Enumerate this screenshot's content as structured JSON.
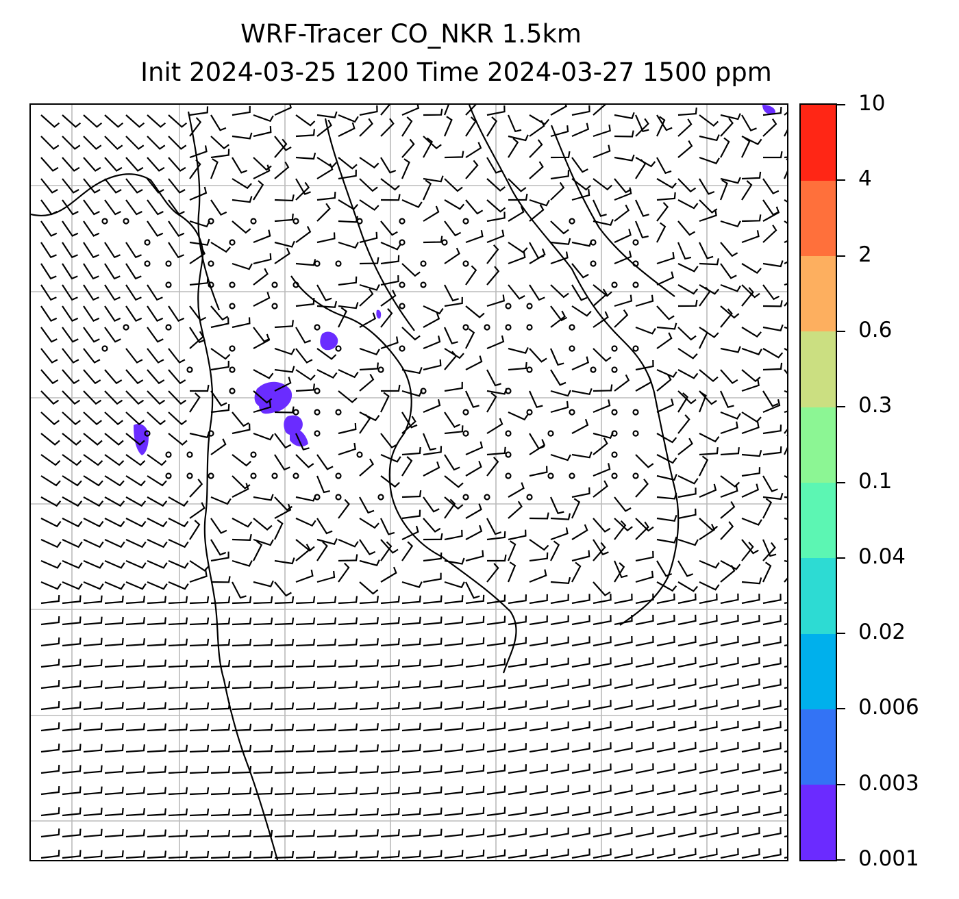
{
  "figure": {
    "title_line1": "WRF-Tracer CO_NKR 1.5km",
    "title_line2": "Init 2024-03-25 1200 Time 2024-03-27 1500 ppm"
  },
  "map": {
    "grid": true,
    "grid_color": "#bbbbbb",
    "tracer_color": "#6a2cff",
    "wind_barbs": true,
    "calm_markers": "small circles"
  },
  "colorbar": {
    "levels": [
      "0.001",
      "0.003",
      "0.006",
      "0.02",
      "0.04",
      "0.1",
      "0.3",
      "0.6",
      "2",
      "4",
      "10"
    ],
    "colors": [
      "#6b2bff",
      "#3373f5",
      "#00b0ec",
      "#2ddbd3",
      "#5cf6b3",
      "#8cf694",
      "#cbdf81",
      "#fdaf5f",
      "#ff703b",
      "#ff2615"
    ]
  }
}
